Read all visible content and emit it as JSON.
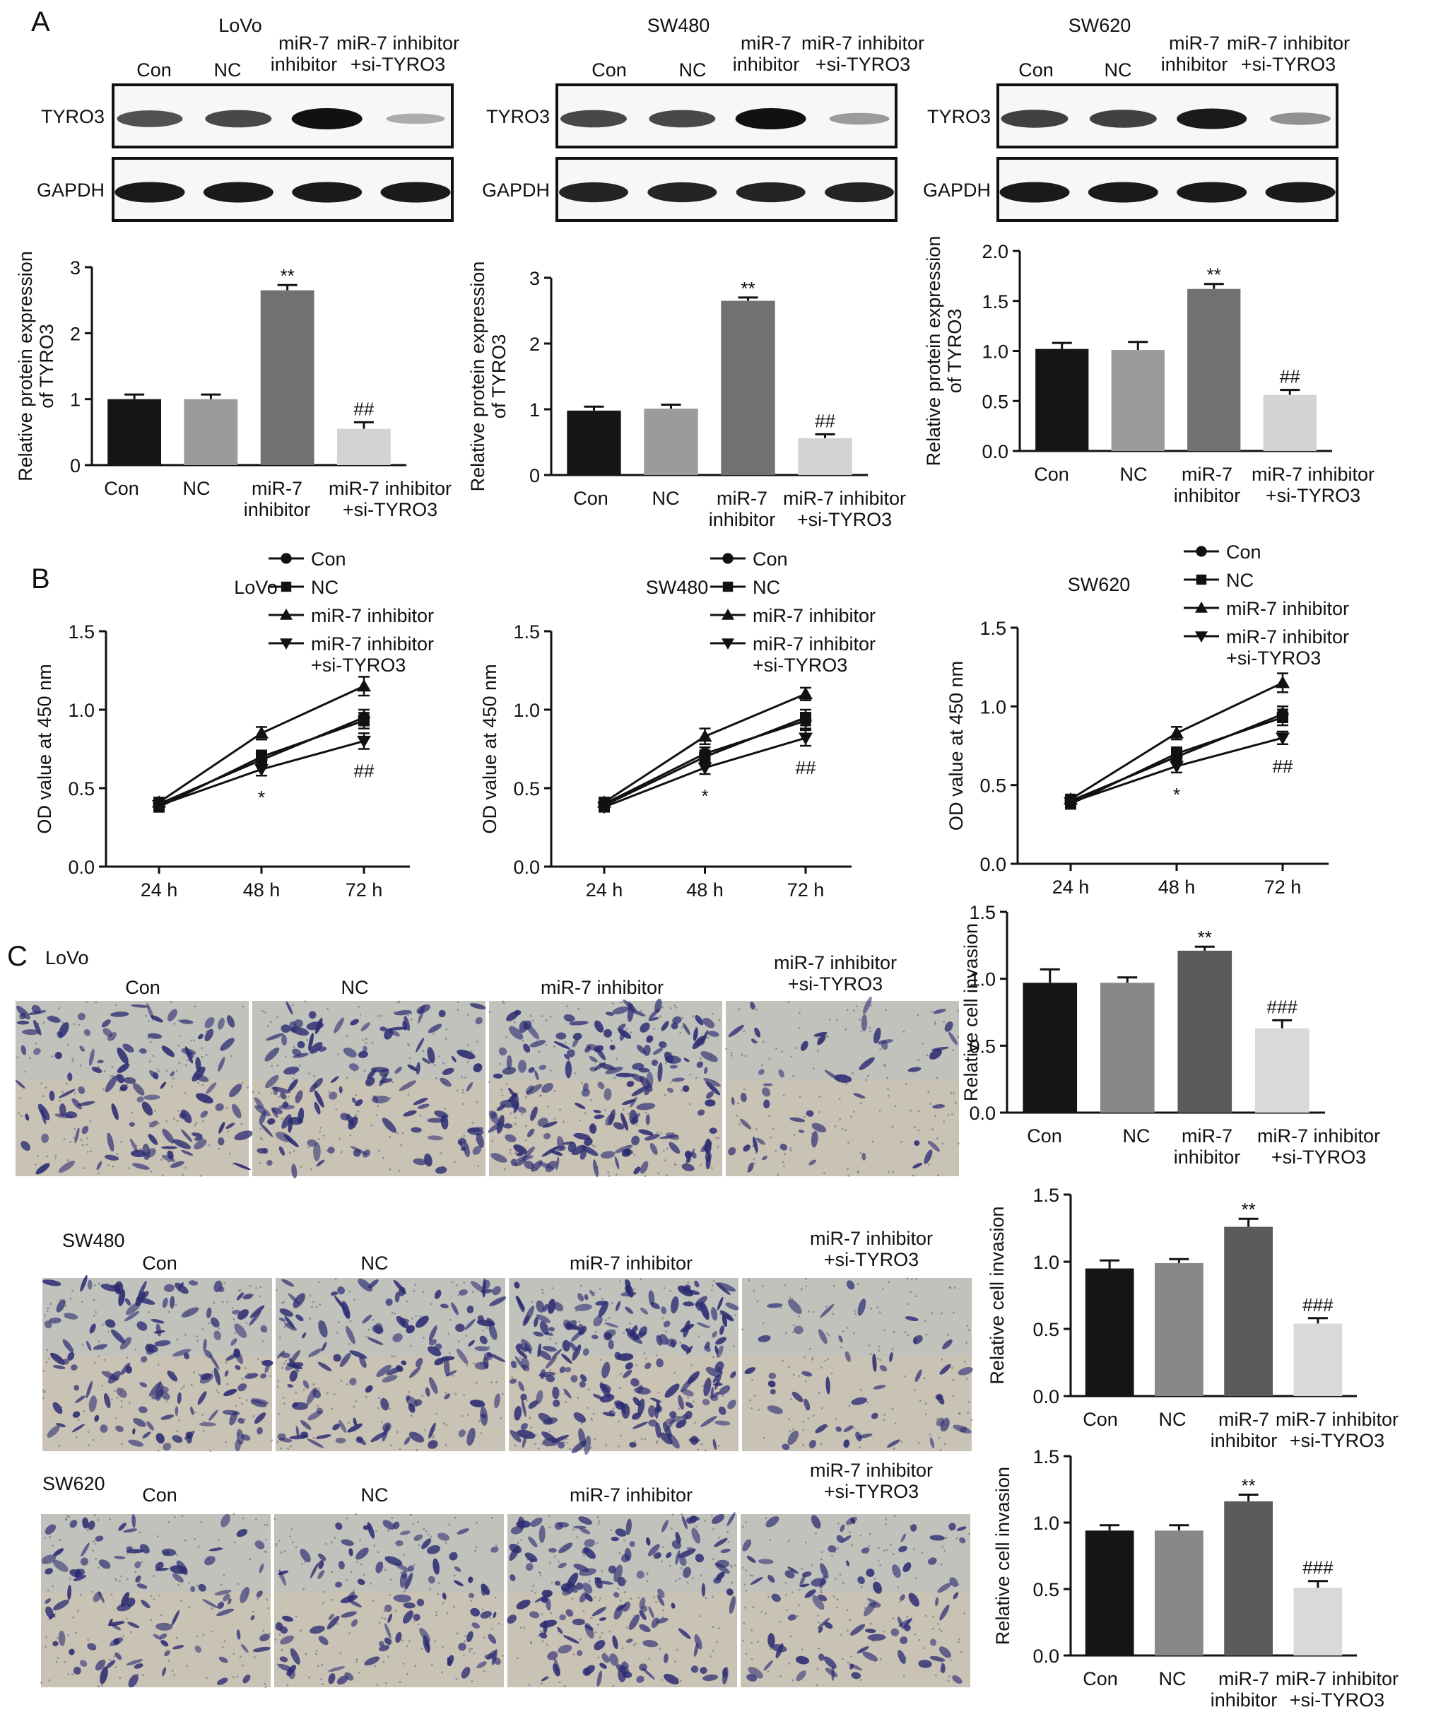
{
  "panel_labels": [
    "A",
    "B",
    "C"
  ],
  "colors": {
    "con": "#151515",
    "nc": "#9b9b9b",
    "inhibitor": "#717171",
    "inhibitor_si": "#d3d3d3",
    "inv_con": "#151515",
    "inv_nc": "#888888",
    "inv_inhibitor": "#5b5b5b",
    "inv_inhibitor_si": "#d9d9d9"
  },
  "western_blots": [
    {
      "cell_line": "LoVo",
      "lanes": [
        "Con",
        "NC",
        "miR-7\ninhibitor",
        "miR-7 inhibitor\n+si-TYRO3"
      ],
      "rows": [
        {
          "label": "TYRO3",
          "band_intensity": [
            0.65,
            0.7,
            1.0,
            0.15
          ]
        },
        {
          "label": "GAPDH",
          "band_intensity": [
            0.95,
            0.95,
            0.95,
            0.95
          ]
        }
      ]
    },
    {
      "cell_line": "SW480",
      "lanes": [
        "Con",
        "NC",
        "miR-7\ninhibitor",
        "miR-7 inhibitor\n+si-TYRO3"
      ],
      "rows": [
        {
          "label": "TYRO3",
          "band_intensity": [
            0.7,
            0.7,
            1.0,
            0.25
          ]
        },
        {
          "label": "GAPDH",
          "band_intensity": [
            0.9,
            0.9,
            0.9,
            0.9
          ]
        }
      ]
    },
    {
      "cell_line": "SW620",
      "lanes": [
        "Con",
        "NC",
        "miR-7\ninhibitor",
        "miR-7 inhibitor\n+si-TYRO3"
      ],
      "rows": [
        {
          "label": "TYRO3",
          "band_intensity": [
            0.75,
            0.75,
            0.95,
            0.3
          ]
        },
        {
          "label": "GAPDH",
          "band_intensity": [
            0.95,
            0.95,
            0.95,
            0.95
          ]
        }
      ]
    }
  ],
  "chart_data": [
    {
      "type": "bar",
      "panel": "A",
      "categories": [
        "Con",
        "NC",
        "miR-7\ninhibitor",
        "miR-7 inhibitor\n+si-TYRO3"
      ],
      "values": [
        1.0,
        1.0,
        2.65,
        0.55
      ],
      "errors": [
        0.07,
        0.07,
        0.08,
        0.1
      ],
      "annotations": [
        "",
        "",
        "**",
        "##"
      ],
      "ylabel": "Relative protein expression\nof TYRO3",
      "ylim": [
        0,
        3
      ],
      "yticks": [
        0,
        1,
        2,
        3
      ],
      "ytick_labels": [
        "0",
        "1",
        "2",
        "3"
      ]
    },
    {
      "type": "bar",
      "panel": "A",
      "categories": [
        "Con",
        "NC",
        "miR-7\ninhibitor",
        "miR-7 inhibitor\n+si-TYRO3"
      ],
      "values": [
        0.98,
        1.01,
        2.65,
        0.56
      ],
      "errors": [
        0.06,
        0.06,
        0.05,
        0.06
      ],
      "annotations": [
        "",
        "",
        "**",
        "##"
      ],
      "ylabel": "Relative protein expression\nof TYRO3",
      "ylim": [
        0,
        3
      ],
      "yticks": [
        0,
        1,
        2,
        3
      ],
      "ytick_labels": [
        "0",
        "1",
        "2",
        "3"
      ]
    },
    {
      "type": "bar",
      "panel": "A",
      "categories": [
        "Con",
        "NC",
        "miR-7\ninhibitor",
        "miR-7 inhibitor\n+si-TYRO3"
      ],
      "values": [
        1.02,
        1.01,
        1.62,
        0.56
      ],
      "errors": [
        0.06,
        0.08,
        0.05,
        0.05
      ],
      "annotations": [
        "",
        "",
        "**",
        "##"
      ],
      "ylabel": "Relative protein expression\nof TYRO3",
      "ylim": [
        0,
        2
      ],
      "yticks": [
        0,
        0.5,
        1,
        1.5,
        2
      ],
      "ytick_labels": [
        "0.0",
        "0.5",
        "1.0",
        "1.5",
        "2.0"
      ]
    },
    {
      "type": "line",
      "panel": "B",
      "title": "LoVo",
      "x": [
        "24 h",
        "48 h",
        "72 h"
      ],
      "series": [
        {
          "name": "Con",
          "marker": "circle",
          "values": [
            0.4,
            0.68,
            0.95
          ],
          "errors": [
            0.03,
            0.04,
            0.05
          ]
        },
        {
          "name": "NC",
          "marker": "square",
          "values": [
            0.38,
            0.7,
            0.93
          ],
          "errors": [
            0.03,
            0.04,
            0.05
          ]
        },
        {
          "name": "miR-7 inhibitor",
          "marker": "triangle-up",
          "values": [
            0.41,
            0.85,
            1.15
          ],
          "errors": [
            0.03,
            0.04,
            0.06
          ]
        },
        {
          "name": "miR-7 inhibitor\n+si-TYRO3",
          "marker": "triangle-down",
          "values": [
            0.39,
            0.62,
            0.8
          ],
          "errors": [
            0.03,
            0.04,
            0.05
          ]
        }
      ],
      "annotations": [
        {
          "x": "48 h",
          "text": "*"
        },
        {
          "x": "72 h",
          "text": "##"
        }
      ],
      "ylabel": "OD value at 450 nm",
      "ylim": [
        0,
        1.5
      ],
      "yticks": [
        0,
        0.5,
        1,
        1.5
      ],
      "ytick_labels": [
        "0.0",
        "0.5",
        "1.0",
        "1.5"
      ],
      "legend_position": "top-right"
    },
    {
      "type": "line",
      "panel": "B",
      "title": "SW480",
      "x": [
        "24 h",
        "48 h",
        "72 h"
      ],
      "series": [
        {
          "name": "Con",
          "marker": "circle",
          "values": [
            0.4,
            0.72,
            0.93
          ],
          "errors": [
            0.03,
            0.04,
            0.05
          ]
        },
        {
          "name": "NC",
          "marker": "square",
          "values": [
            0.39,
            0.7,
            0.95
          ],
          "errors": [
            0.03,
            0.04,
            0.05
          ]
        },
        {
          "name": "miR-7 inhibitor",
          "marker": "triangle-up",
          "values": [
            0.41,
            0.83,
            1.1
          ],
          "errors": [
            0.03,
            0.05,
            0.04
          ]
        },
        {
          "name": "miR-7 inhibitor\n+si-TYRO3",
          "marker": "triangle-down",
          "values": [
            0.38,
            0.63,
            0.82
          ],
          "errors": [
            0.03,
            0.04,
            0.05
          ]
        }
      ],
      "annotations": [
        {
          "x": "48 h",
          "text": "*"
        },
        {
          "x": "72 h",
          "text": "##"
        }
      ],
      "ylabel": "OD value at 450 nm",
      "ylim": [
        0,
        1.5
      ],
      "yticks": [
        0,
        0.5,
        1,
        1.5
      ],
      "ytick_labels": [
        "0.0",
        "0.5",
        "1.0",
        "1.5"
      ],
      "legend_position": "top-right"
    },
    {
      "type": "line",
      "panel": "B",
      "title": "SW620",
      "x": [
        "24 h",
        "48 h",
        "72 h"
      ],
      "series": [
        {
          "name": "Con",
          "marker": "circle",
          "values": [
            0.4,
            0.68,
            0.95
          ],
          "errors": [
            0.03,
            0.04,
            0.05
          ]
        },
        {
          "name": "NC",
          "marker": "square",
          "values": [
            0.38,
            0.7,
            0.93
          ],
          "errors": [
            0.03,
            0.04,
            0.05
          ]
        },
        {
          "name": "miR-7 inhibitor",
          "marker": "triangle-up",
          "values": [
            0.41,
            0.83,
            1.15
          ],
          "errors": [
            0.03,
            0.04,
            0.06
          ]
        },
        {
          "name": "miR-7 inhibitor\n+si-TYRO3",
          "marker": "triangle-down",
          "values": [
            0.39,
            0.62,
            0.8
          ],
          "errors": [
            0.03,
            0.04,
            0.04
          ]
        }
      ],
      "annotations": [
        {
          "x": "48 h",
          "text": "*"
        },
        {
          "x": "72 h",
          "text": "##"
        }
      ],
      "ylabel": "OD value at 450 nm",
      "ylim": [
        0,
        1.5
      ],
      "yticks": [
        0,
        0.5,
        1,
        1.5
      ],
      "ytick_labels": [
        "0.0",
        "0.5",
        "1.0",
        "1.5"
      ],
      "legend_position": "top-right"
    },
    {
      "type": "bar",
      "panel": "C",
      "categories": [
        "Con",
        "NC",
        "miR-7\ninhibitor",
        "miR-7 inhibitor\n+si-TYRO3"
      ],
      "values": [
        0.97,
        0.97,
        1.21,
        0.63
      ],
      "errors": [
        0.1,
        0.04,
        0.03,
        0.06
      ],
      "annotations": [
        "",
        "",
        "**",
        "###"
      ],
      "ylabel": "Relative cell invasion",
      "ylim": [
        0,
        1.5
      ],
      "yticks": [
        0,
        0.5,
        1,
        1.5
      ],
      "ytick_labels": [
        "0.0",
        "0.5",
        "1.0",
        "1.5"
      ]
    },
    {
      "type": "bar",
      "panel": "C",
      "categories": [
        "Con",
        "NC",
        "miR-7\ninhibitor",
        "miR-7 inhibitor\n+si-TYRO3"
      ],
      "values": [
        0.95,
        0.99,
        1.26,
        0.54
      ],
      "errors": [
        0.06,
        0.03,
        0.06,
        0.04
      ],
      "annotations": [
        "",
        "",
        "**",
        "###"
      ],
      "ylabel": "Relative cell invasion",
      "ylim": [
        0,
        1.5
      ],
      "yticks": [
        0,
        0.5,
        1,
        1.5
      ],
      "ytick_labels": [
        "0.0",
        "0.5",
        "1.0",
        "1.5"
      ]
    },
    {
      "type": "bar",
      "panel": "C",
      "categories": [
        "Con",
        "NC",
        "miR-7\ninhibitor",
        "miR-7 inhibitor\n+si-TYRO3"
      ],
      "values": [
        0.94,
        0.94,
        1.16,
        0.51
      ],
      "errors": [
        0.04,
        0.04,
        0.05,
        0.05
      ],
      "annotations": [
        "",
        "",
        "**",
        "###"
      ],
      "ylabel": "Relative cell invasion",
      "ylim": [
        0,
        1.5
      ],
      "yticks": [
        0,
        0.5,
        1,
        1.5
      ],
      "ytick_labels": [
        "0.0",
        "0.5",
        "1.0",
        "1.5"
      ]
    }
  ],
  "invasion_images": [
    {
      "cell_line": "LoVo",
      "panels": [
        {
          "label": "Con",
          "density": 0.5
        },
        {
          "label": "NC",
          "density": 0.55
        },
        {
          "label": "miR-7 inhibitor",
          "density": 0.85
        },
        {
          "label": "miR-7 inhibitor\n+si-TYRO3",
          "density": 0.15
        }
      ]
    },
    {
      "cell_line": "SW480",
      "panels": [
        {
          "label": "Con",
          "density": 0.6
        },
        {
          "label": "NC",
          "density": 0.6
        },
        {
          "label": "miR-7 inhibitor",
          "density": 0.95
        },
        {
          "label": "miR-7 inhibitor\n+si-TYRO3",
          "density": 0.15
        }
      ]
    },
    {
      "cell_line": "SW620",
      "panels": [
        {
          "label": "Con",
          "density": 0.4
        },
        {
          "label": "NC",
          "density": 0.4
        },
        {
          "label": "miR-7 inhibitor",
          "density": 0.65
        },
        {
          "label": "miR-7 inhibitor\n+si-TYRO3",
          "density": 0.35
        }
      ]
    }
  ]
}
